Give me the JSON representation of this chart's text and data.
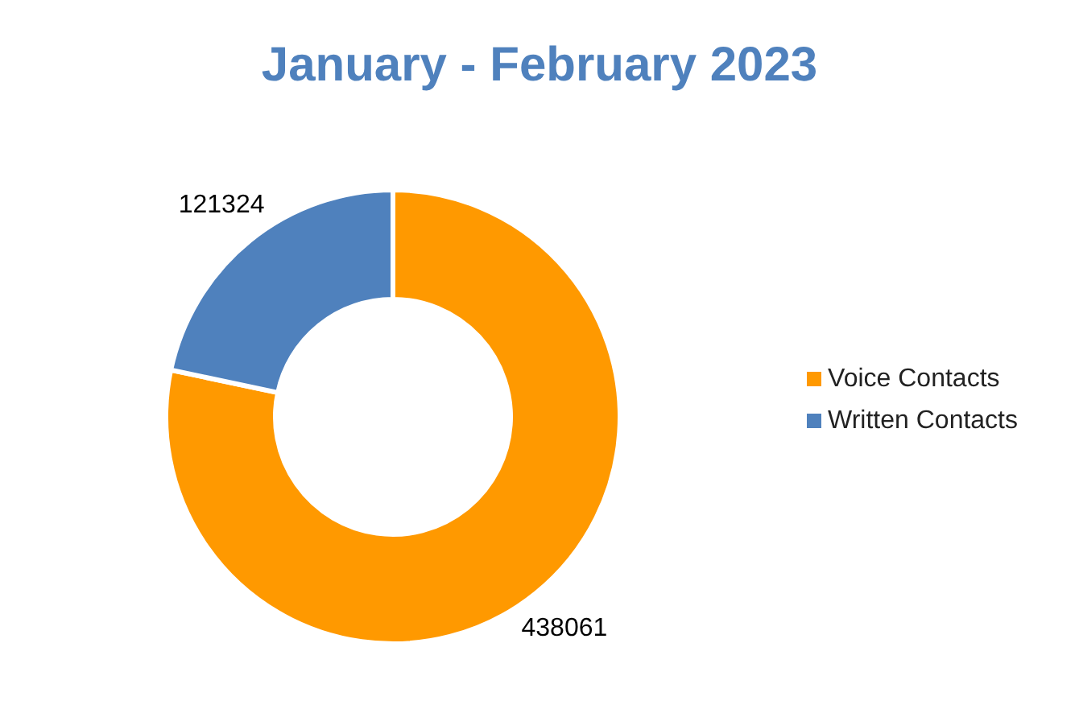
{
  "chart_data": {
    "type": "donut",
    "title": "January - February 2023",
    "categories": [
      "Voice Contacts",
      "Written Contacts"
    ],
    "values": [
      438061,
      121324
    ],
    "colors": [
      "#ff9900",
      "#4f81bd"
    ],
    "data_labels": true,
    "legend": "right"
  }
}
